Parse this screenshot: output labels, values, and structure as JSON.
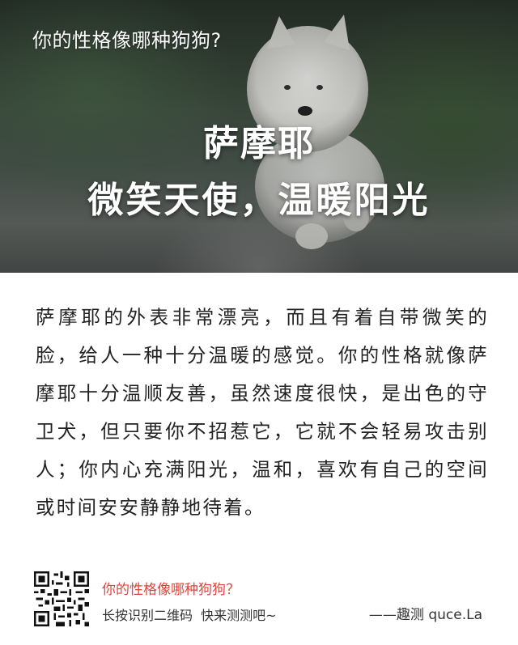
{
  "header": {
    "quiz_title": "你的性格像哪种狗狗?"
  },
  "result": {
    "breed": "萨摩耶",
    "tagline": "微笑天使，温暖阳光"
  },
  "description": "萨摩耶的外表非常漂亮，而且有着自带微笑的脸，给人一种十分温暖的感觉。你的性格就像萨摩耶十分温顺友善，虽然速度很快，是出色的守卫犬，但只要你不招惹它，它就不会轻易攻击别人；你内心充满阳光，温和，喜欢有自己的空间或时间安安静静地待着。",
  "footer": {
    "title": "你的性格像哪种狗狗？",
    "subtitle": "长按识别二维码  快来测测吧~",
    "brand": "——趣测 quce.La",
    "qr_icon": "qr-code-icon"
  },
  "colors": {
    "footer_title": "#e0443a",
    "hero_text": "#ffffff",
    "body_text": "#222222"
  }
}
